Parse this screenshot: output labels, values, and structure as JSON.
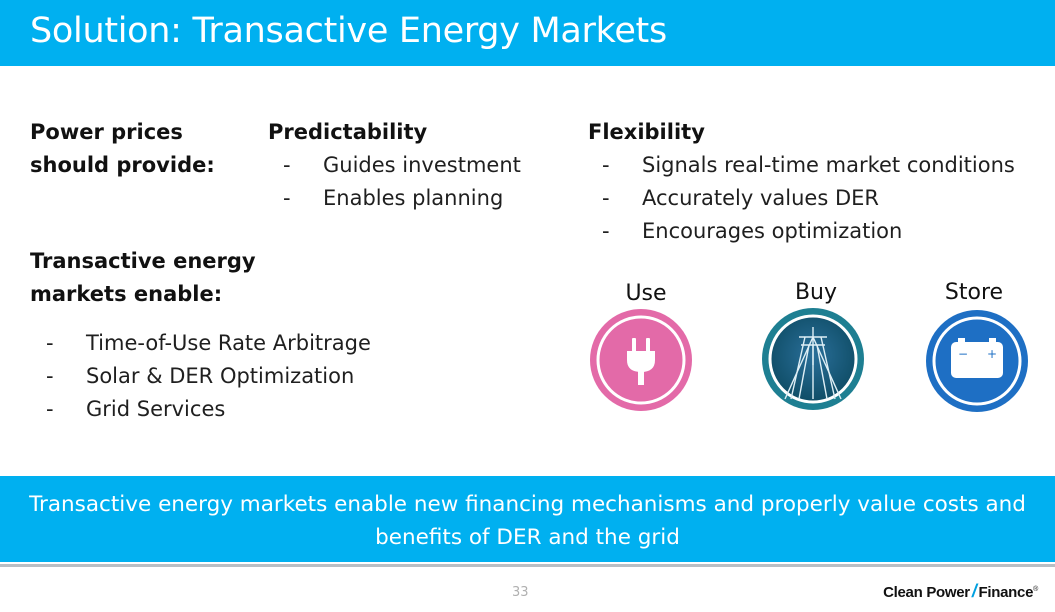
{
  "title": "Solution: Transactive Energy Markets",
  "power_prices": {
    "label_line1": "Power prices",
    "label_line2": "should provide:"
  },
  "predictability": {
    "heading": "Predictability",
    "items": [
      "Guides investment",
      "Enables planning"
    ]
  },
  "flexibility": {
    "heading": "Flexibility",
    "items": [
      "Signals real-time market conditions",
      "Accurately values DER",
      "Encourages optimization"
    ]
  },
  "markets_enable": {
    "label_line1": "Transactive energy",
    "label_line2": "markets enable:",
    "items": [
      "Time-of-Use Rate Arbitrage",
      "Solar & DER Optimization",
      "Grid Services"
    ]
  },
  "bullet_dash": "-",
  "icons": [
    {
      "label": "Use",
      "icon": "plug-icon",
      "color": "#e36aa8"
    },
    {
      "label": "Buy",
      "icon": "power-line-icon",
      "color": "#1e7f92"
    },
    {
      "label": "Store",
      "icon": "battery-icon",
      "color": "#1e6fc4"
    }
  ],
  "battery_signs": {
    "minus": "−",
    "plus": "+"
  },
  "banner": {
    "line1": "Transactive energy markets enable new financing mechanisms and properly value costs and",
    "line2": "benefits of DER and the grid"
  },
  "page_number": "33",
  "brand": {
    "part1": "Clean Power",
    "slash": "/",
    "part2": "Finance",
    "reg": "®"
  },
  "colors": {
    "accent": "#00b0f0",
    "divider": "#b8bec4"
  }
}
